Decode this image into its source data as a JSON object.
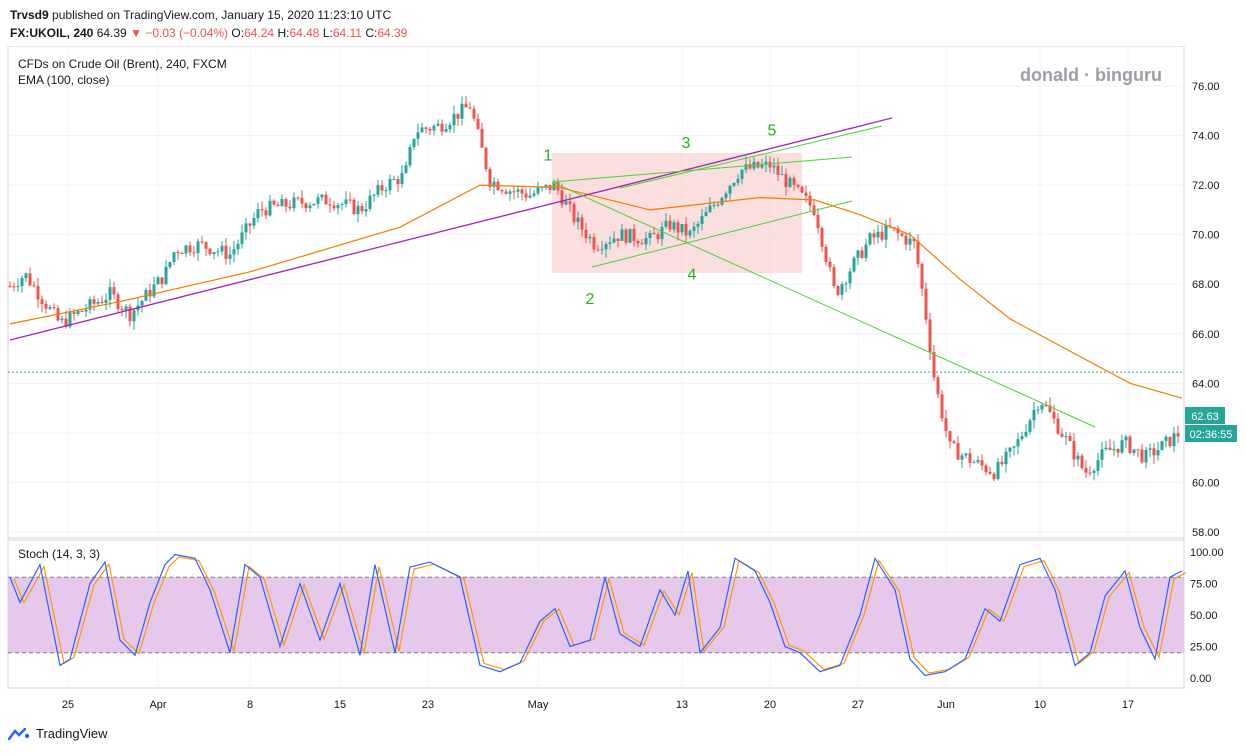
{
  "header": {
    "publisher": "Trvsd9",
    "published_text": "published on TradingView.com, January 15, 2020 11:23:10 UTC",
    "symbol": "FX:UKOIL, 240",
    "last": "64.39",
    "change": "−0.03 (−0.04%)",
    "open_label": "O:",
    "open": "64.24",
    "high_label": "H:",
    "high": "64.48",
    "low_label": "L:",
    "low": "64.11",
    "close_label": "C:",
    "close": "64.39"
  },
  "legend": {
    "instrument": "CFDs on Crude Oil (Brent), 240, FXCM",
    "ema": "EMA (100, close)",
    "watermark": "donald · binguru",
    "stoch": "Stoch (14, 3, 3)"
  },
  "footer": {
    "brand": "TradingView"
  },
  "colors": {
    "up": "#26a69a",
    "down": "#ef5350",
    "ema": "#f57c00",
    "trend_purple": "#9c27b0",
    "trend_green": "#4cd137",
    "stoch_k": "#2962ff",
    "stoch_d": "#ff9800",
    "stoch_band": "#e1bee7",
    "price_tag": "#26a69a"
  },
  "chart_data": {
    "type": "candlestick",
    "price_axis": {
      "ticks": [
        "76.00",
        "74.00",
        "72.00",
        "70.00",
        "68.00",
        "66.00",
        "64.00",
        "62.00",
        "60.00",
        "58.00"
      ],
      "ylim": [
        57.6,
        77.6
      ]
    },
    "time_axis": {
      "ticks": [
        "25",
        "Apr",
        "8",
        "15",
        "23",
        "May",
        "13",
        "20",
        "27",
        "Jun",
        "10",
        "17"
      ]
    },
    "current_price": "62.63",
    "countdown": "02:36:55",
    "reference_level": 64.45,
    "price_path": [
      {
        "x": 0,
        "p": 67.6
      },
      {
        "x": 25,
        "p": 68.4
      },
      {
        "x": 60,
        "p": 66.4
      },
      {
        "x": 110,
        "p": 67.6
      },
      {
        "x": 130,
        "p": 66.8
      },
      {
        "x": 165,
        "p": 68.4
      },
      {
        "x": 175,
        "p": 69.4
      },
      {
        "x": 200,
        "p": 69.6
      },
      {
        "x": 230,
        "p": 69.2
      },
      {
        "x": 260,
        "p": 71.0
      },
      {
        "x": 300,
        "p": 71.3
      },
      {
        "x": 330,
        "p": 71.4
      },
      {
        "x": 360,
        "p": 71.0
      },
      {
        "x": 385,
        "p": 72.0
      },
      {
        "x": 405,
        "p": 72.4
      },
      {
        "x": 415,
        "p": 74.2
      },
      {
        "x": 440,
        "p": 74.4
      },
      {
        "x": 470,
        "p": 75.2
      },
      {
        "x": 490,
        "p": 72.2
      },
      {
        "x": 510,
        "p": 71.8
      },
      {
        "x": 530,
        "p": 71.6
      },
      {
        "x": 555,
        "p": 72.0
      },
      {
        "x": 575,
        "p": 70.6
      },
      {
        "x": 595,
        "p": 69.6
      },
      {
        "x": 620,
        "p": 70.0
      },
      {
        "x": 650,
        "p": 69.8
      },
      {
        "x": 670,
        "p": 70.4
      },
      {
        "x": 690,
        "p": 70.0
      },
      {
        "x": 710,
        "p": 71.0
      },
      {
        "x": 740,
        "p": 72.6
      },
      {
        "x": 770,
        "p": 72.8
      },
      {
        "x": 790,
        "p": 72.0
      },
      {
        "x": 815,
        "p": 71.0
      },
      {
        "x": 835,
        "p": 67.6
      },
      {
        "x": 850,
        "p": 68.6
      },
      {
        "x": 870,
        "p": 69.8
      },
      {
        "x": 890,
        "p": 70.2
      },
      {
        "x": 915,
        "p": 69.6
      },
      {
        "x": 925,
        "p": 67.0
      },
      {
        "x": 935,
        "p": 64.0
      },
      {
        "x": 950,
        "p": 61.4
      },
      {
        "x": 975,
        "p": 60.8
      },
      {
        "x": 995,
        "p": 60.4
      },
      {
        "x": 1015,
        "p": 61.4
      },
      {
        "x": 1040,
        "p": 63.4
      },
      {
        "x": 1065,
        "p": 61.8
      },
      {
        "x": 1085,
        "p": 60.4
      },
      {
        "x": 1105,
        "p": 61.2
      },
      {
        "x": 1125,
        "p": 61.6
      },
      {
        "x": 1145,
        "p": 61.0
      },
      {
        "x": 1160,
        "p": 61.4
      },
      {
        "x": 1180,
        "p": 62.0
      }
    ],
    "ema_path": [
      {
        "x": 10,
        "p": 66.4
      },
      {
        "x": 120,
        "p": 67.3
      },
      {
        "x": 250,
        "p": 68.5
      },
      {
        "x": 400,
        "p": 70.3
      },
      {
        "x": 480,
        "p": 72.0
      },
      {
        "x": 560,
        "p": 71.9
      },
      {
        "x": 650,
        "p": 71.0
      },
      {
        "x": 760,
        "p": 71.5
      },
      {
        "x": 815,
        "p": 71.4
      },
      {
        "x": 860,
        "p": 70.8
      },
      {
        "x": 910,
        "p": 70.0
      },
      {
        "x": 960,
        "p": 68.2
      },
      {
        "x": 1010,
        "p": 66.6
      },
      {
        "x": 1070,
        "p": 65.3
      },
      {
        "x": 1130,
        "p": 64.0
      },
      {
        "x": 1182,
        "p": 63.4
      }
    ],
    "wave_labels": [
      {
        "label": "1",
        "x": 548,
        "p": 73.0
      },
      {
        "label": "2",
        "x": 590,
        "p": 67.2
      },
      {
        "label": "3",
        "x": 686,
        "p": 73.5
      },
      {
        "label": "4",
        "x": 692,
        "p": 68.2
      },
      {
        "label": "5",
        "x": 772,
        "p": 74.0
      }
    ],
    "stoch": {
      "axis_ticks": [
        "100.00",
        "75.00",
        "50.00",
        "25.00",
        "0.00"
      ],
      "ylim": [
        -5,
        105
      ],
      "bands": [
        80,
        20
      ],
      "k_path": [
        {
          "x": 10,
          "v": 80
        },
        {
          "x": 20,
          "v": 60
        },
        {
          "x": 40,
          "v": 90
        },
        {
          "x": 60,
          "v": 10
        },
        {
          "x": 70,
          "v": 15
        },
        {
          "x": 90,
          "v": 75
        },
        {
          "x": 105,
          "v": 92
        },
        {
          "x": 120,
          "v": 30
        },
        {
          "x": 135,
          "v": 18
        },
        {
          "x": 150,
          "v": 60
        },
        {
          "x": 165,
          "v": 90
        },
        {
          "x": 175,
          "v": 98
        },
        {
          "x": 195,
          "v": 95
        },
        {
          "x": 210,
          "v": 70
        },
        {
          "x": 230,
          "v": 20
        },
        {
          "x": 245,
          "v": 90
        },
        {
          "x": 260,
          "v": 80
        },
        {
          "x": 280,
          "v": 25
        },
        {
          "x": 300,
          "v": 75
        },
        {
          "x": 320,
          "v": 30
        },
        {
          "x": 340,
          "v": 75
        },
        {
          "x": 360,
          "v": 18
        },
        {
          "x": 375,
          "v": 90
        },
        {
          "x": 395,
          "v": 20
        },
        {
          "x": 410,
          "v": 88
        },
        {
          "x": 430,
          "v": 92
        },
        {
          "x": 460,
          "v": 80
        },
        {
          "x": 480,
          "v": 10
        },
        {
          "x": 500,
          "v": 5
        },
        {
          "x": 520,
          "v": 12
        },
        {
          "x": 540,
          "v": 45
        },
        {
          "x": 555,
          "v": 55
        },
        {
          "x": 570,
          "v": 25
        },
        {
          "x": 590,
          "v": 30
        },
        {
          "x": 605,
          "v": 80
        },
        {
          "x": 620,
          "v": 35
        },
        {
          "x": 640,
          "v": 25
        },
        {
          "x": 660,
          "v": 70
        },
        {
          "x": 675,
          "v": 50
        },
        {
          "x": 688,
          "v": 85
        },
        {
          "x": 700,
          "v": 20
        },
        {
          "x": 720,
          "v": 40
        },
        {
          "x": 735,
          "v": 95
        },
        {
          "x": 755,
          "v": 85
        },
        {
          "x": 770,
          "v": 60
        },
        {
          "x": 785,
          "v": 25
        },
        {
          "x": 800,
          "v": 20
        },
        {
          "x": 820,
          "v": 5
        },
        {
          "x": 840,
          "v": 10
        },
        {
          "x": 860,
          "v": 50
        },
        {
          "x": 875,
          "v": 95
        },
        {
          "x": 895,
          "v": 70
        },
        {
          "x": 910,
          "v": 15
        },
        {
          "x": 925,
          "v": 2
        },
        {
          "x": 945,
          "v": 5
        },
        {
          "x": 965,
          "v": 15
        },
        {
          "x": 985,
          "v": 55
        },
        {
          "x": 1000,
          "v": 45
        },
        {
          "x": 1020,
          "v": 90
        },
        {
          "x": 1040,
          "v": 95
        },
        {
          "x": 1055,
          "v": 70
        },
        {
          "x": 1075,
          "v": 10
        },
        {
          "x": 1090,
          "v": 20
        },
        {
          "x": 1105,
          "v": 65
        },
        {
          "x": 1125,
          "v": 85
        },
        {
          "x": 1140,
          "v": 40
        },
        {
          "x": 1155,
          "v": 15
        },
        {
          "x": 1170,
          "v": 80
        },
        {
          "x": 1182,
          "v": 85
        }
      ]
    }
  }
}
